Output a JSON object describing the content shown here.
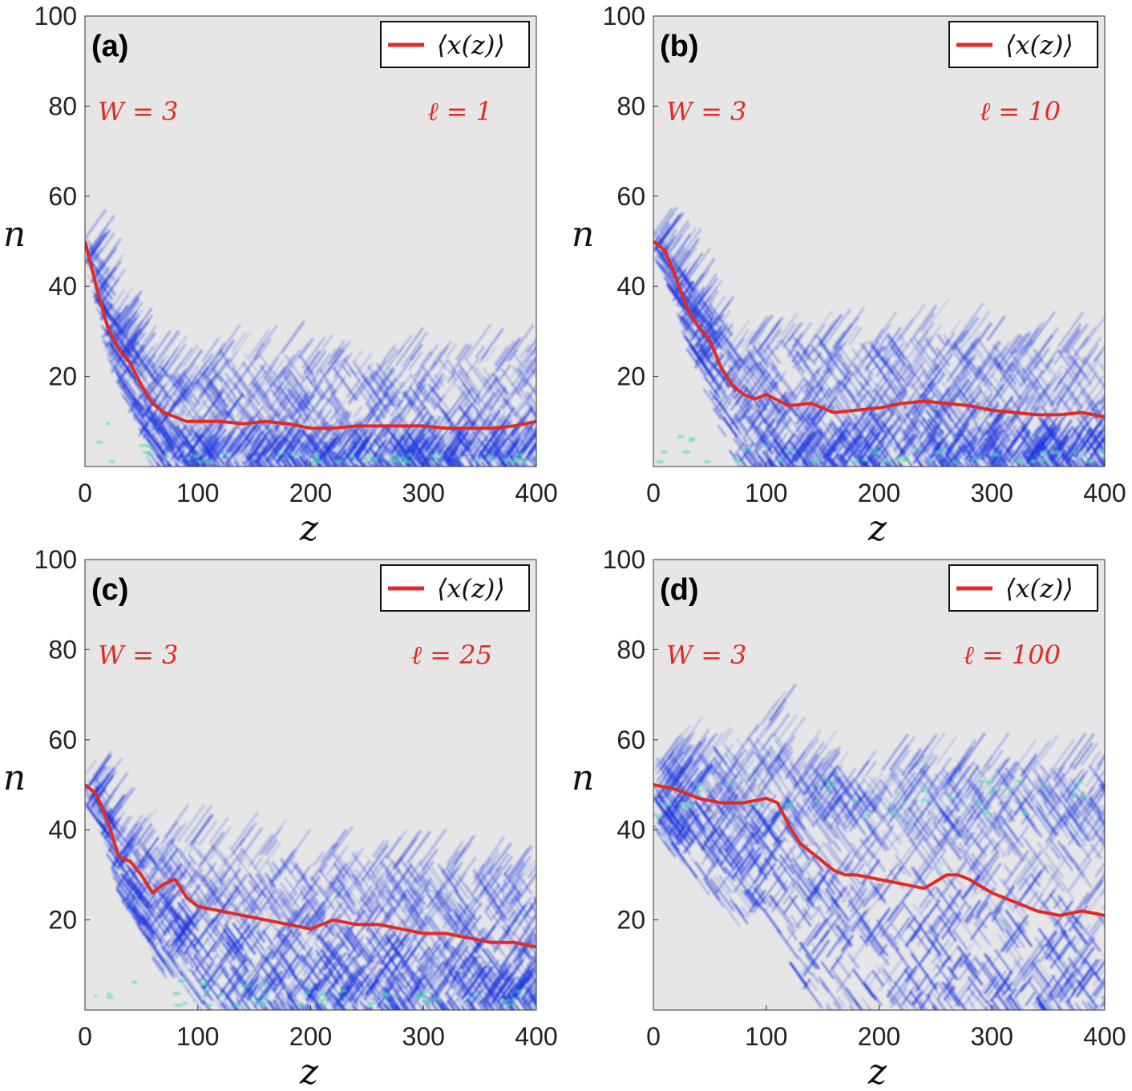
{
  "figure": {
    "legend_label": "⟨x(z)⟩",
    "xlabel": "z",
    "ylabel": "n"
  },
  "colors": {
    "background": "#e6e6e6",
    "mean_line": "#e32a22",
    "intensity": "#1530e0",
    "peak": "#40e0a0",
    "text_param": "#e32a22"
  },
  "chart_data": [
    {
      "type": "line",
      "panel": "(a)",
      "W_text": "W = 3",
      "ell_text": "ℓ = 1",
      "legend": "⟨x(z)⟩",
      "xlabel": "z",
      "ylabel": "n",
      "xlim": [
        0,
        400
      ],
      "ylim": [
        0,
        100
      ],
      "xticks": [
        "0",
        "100",
        "200",
        "300",
        "400"
      ],
      "yticks": [
        "20",
        "40",
        "60",
        "80",
        "100"
      ],
      "series": [
        {
          "name": "⟨x(z)⟩",
          "x": [
            0,
            10,
            20,
            30,
            40,
            50,
            60,
            70,
            80,
            90,
            100,
            120,
            140,
            160,
            180,
            200,
            220,
            240,
            260,
            280,
            300,
            320,
            340,
            360,
            380,
            400
          ],
          "y": [
            50,
            40,
            31,
            26,
            23,
            18,
            14,
            12,
            11,
            10,
            10,
            10,
            9.5,
            10,
            9.5,
            8.5,
            8.5,
            9,
            9,
            9,
            9,
            8.5,
            8.5,
            8.5,
            9,
            10
          ]
        }
      ]
    },
    {
      "type": "line",
      "panel": "(b)",
      "W_text": "W = 3",
      "ell_text": "ℓ = 10",
      "legend": "⟨x(z)⟩",
      "xlabel": "z",
      "ylabel": "n",
      "xlim": [
        0,
        400
      ],
      "ylim": [
        0,
        100
      ],
      "xticks": [
        "0",
        "100",
        "200",
        "300",
        "400"
      ],
      "yticks": [
        "20",
        "40",
        "60",
        "80",
        "100"
      ],
      "series": [
        {
          "name": "⟨x(z)⟩",
          "x": [
            0,
            10,
            20,
            30,
            40,
            50,
            60,
            70,
            80,
            90,
            100,
            120,
            140,
            160,
            180,
            200,
            220,
            240,
            260,
            280,
            300,
            320,
            340,
            360,
            380,
            400
          ],
          "y": [
            50,
            48,
            42,
            35,
            31,
            28,
            22,
            18,
            16,
            15,
            16,
            13.5,
            14,
            12,
            12.5,
            13,
            14,
            14.5,
            14,
            13.5,
            12.5,
            12,
            11.5,
            11.5,
            12,
            11
          ]
        }
      ]
    },
    {
      "type": "line",
      "panel": "(c)",
      "W_text": "W = 3",
      "ell_text": "ℓ = 25",
      "legend": "⟨x(z)⟩",
      "xlabel": "z",
      "ylabel": "n",
      "xlim": [
        0,
        400
      ],
      "ylim": [
        0,
        100
      ],
      "xticks": [
        "0",
        "100",
        "200",
        "300",
        "400"
      ],
      "yticks": [
        "20",
        "40",
        "60",
        "80",
        "100"
      ],
      "series": [
        {
          "name": "⟨x(z)⟩",
          "x": [
            0,
            10,
            20,
            30,
            40,
            50,
            60,
            70,
            80,
            90,
            100,
            120,
            140,
            160,
            180,
            200,
            220,
            240,
            260,
            280,
            300,
            320,
            340,
            360,
            380,
            400
          ],
          "y": [
            50,
            48,
            42,
            34,
            33,
            30,
            26,
            28,
            29,
            25,
            23,
            22,
            21,
            20,
            19,
            18,
            20,
            19,
            19,
            18,
            17,
            17,
            16,
            15,
            15,
            14
          ]
        }
      ]
    },
    {
      "type": "line",
      "panel": "(d)",
      "W_text": "W = 3",
      "ell_text": "ℓ = 100",
      "legend": "⟨x(z)⟩",
      "xlabel": "z",
      "ylabel": "n",
      "xlim": [
        0,
        400
      ],
      "ylim": [
        0,
        100
      ],
      "xticks": [
        "0",
        "100",
        "200",
        "300",
        "400"
      ],
      "yticks": [
        "20",
        "40",
        "60",
        "80",
        "100"
      ],
      "series": [
        {
          "name": "⟨x(z)⟩",
          "x": [
            0,
            20,
            40,
            60,
            80,
            100,
            110,
            120,
            130,
            140,
            150,
            160,
            170,
            180,
            200,
            220,
            240,
            260,
            270,
            280,
            300,
            320,
            340,
            360,
            380,
            400
          ],
          "y": [
            50,
            49,
            47,
            46,
            46,
            47,
            46,
            41,
            37,
            35,
            33,
            31,
            30,
            30,
            29,
            28,
            27,
            30,
            30,
            29,
            26,
            24,
            22,
            21,
            22,
            21
          ]
        }
      ]
    }
  ]
}
